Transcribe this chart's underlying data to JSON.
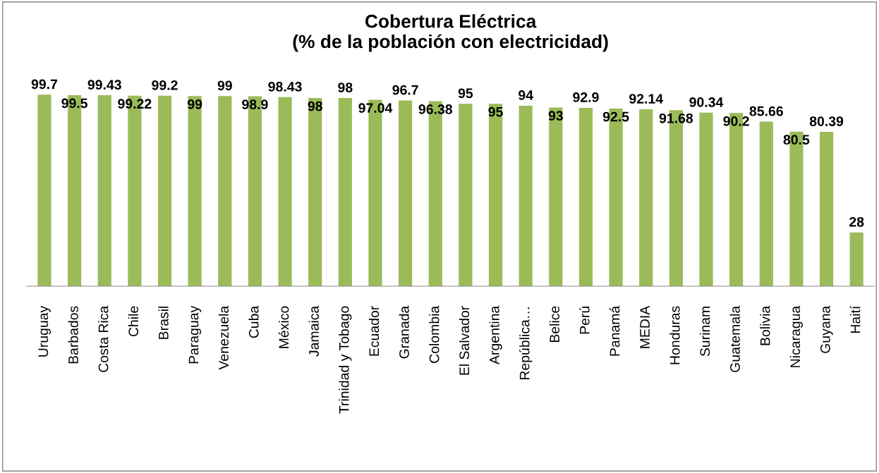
{
  "chart_data": {
    "type": "bar",
    "title": "Cobertura Eléctrica\n(% de la población con electricidad)",
    "categories": [
      "Uruguay",
      "Barbados",
      "Costa Rica",
      "Chile",
      "Brasil",
      "Paraguay",
      "Venezuela",
      "Cuba",
      "México",
      "Jamaica",
      "Trinidad y Tobago",
      "Ecuador",
      "Granada",
      "Colombia",
      "El Salvador",
      "Argentina",
      "República…",
      "Belice",
      "Perú",
      "Panamá",
      "MEDIA",
      "Honduras",
      "Surinam",
      "Guatemala",
      "Bolivia",
      "Nicaragua",
      "Guyana",
      "Haití"
    ],
    "values": [
      99.7,
      99.5,
      99.43,
      99.22,
      99.2,
      99,
      99,
      98.9,
      98.43,
      98,
      98,
      97.04,
      96.7,
      96.38,
      95,
      95,
      94,
      93,
      92.9,
      92.5,
      92.14,
      91.68,
      90.34,
      90.2,
      85.66,
      80.5,
      80.39,
      28
    ],
    "color": "#9bbb59",
    "data_labels": true,
    "tick_labels": "x",
    "grid": false,
    "legend": false
  }
}
